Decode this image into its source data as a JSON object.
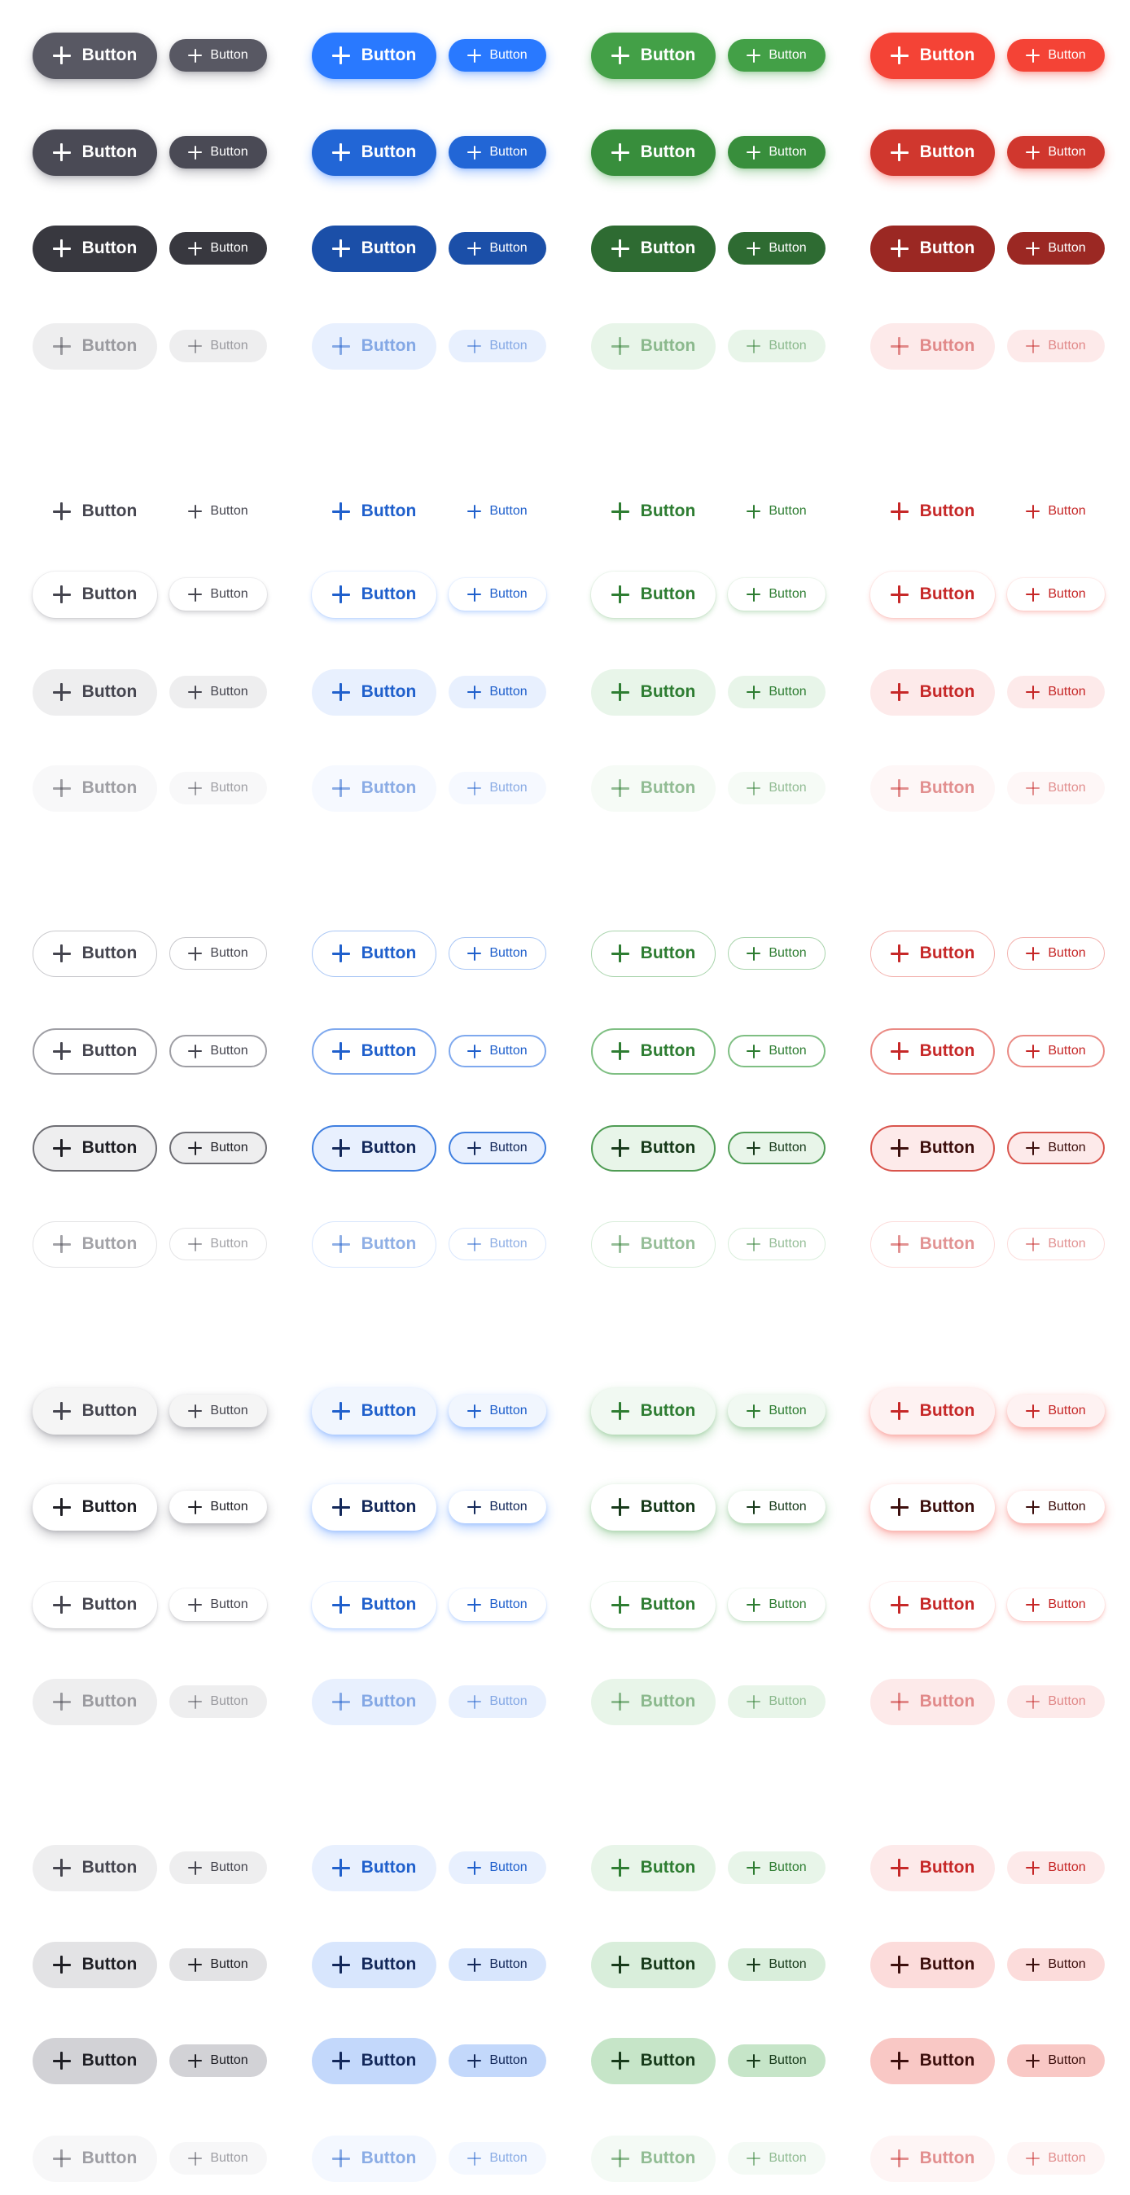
{
  "button_label": "Button",
  "icon": "plus-icon",
  "palettes": [
    {
      "name": "neutral",
      "base": "#585863",
      "hover": "#4a4a55",
      "active": "#38383f",
      "text": "#45454f",
      "strong": "#1e1e24",
      "tint": "#eeeeef",
      "tint2": "#e3e3e5",
      "tint3": "#d2d2d6",
      "border": "#c8c8cc",
      "border2": "#9e9ea4",
      "border3": "#6e6e74"
    },
    {
      "name": "blue",
      "base": "#2979ff",
      "hover": "#2266d6",
      "active": "#1b4fa8",
      "text": "#2060cc",
      "strong": "#13285a",
      "tint": "#e8f0fe",
      "tint2": "#d8e6fd",
      "tint3": "#c3d8fb",
      "border": "#a9c6f5",
      "border2": "#7fa9ee",
      "border3": "#3f7fe0"
    },
    {
      "name": "green",
      "base": "#43a047",
      "hover": "#388e3c",
      "active": "#2e6b32",
      "text": "#2e7d32",
      "strong": "#173a1a",
      "tint": "#e8f5e9",
      "tint2": "#d9eedb",
      "tint3": "#c6e5c8",
      "border": "#a9d4ac",
      "border2": "#7fbf83",
      "border3": "#4f9c54"
    },
    {
      "name": "red",
      "base": "#f44336",
      "hover": "#d0372e",
      "active": "#9b2823",
      "text": "#c62828",
      "strong": "#3d0f0d",
      "tint": "#fdeaea",
      "tint2": "#fcdcdb",
      "tint3": "#f9c8c5",
      "border": "#f3b2ae",
      "border2": "#ea8a84",
      "border3": "#d9544c"
    }
  ],
  "groups": [
    {
      "variant": "solid",
      "states": [
        "default",
        "hover",
        "active",
        "disabled"
      ]
    },
    {
      "variant": "text",
      "states": [
        "default",
        "hover",
        "active",
        "disabled"
      ]
    },
    {
      "variant": "outline",
      "states": [
        "default",
        "hover",
        "active",
        "disabled"
      ]
    },
    {
      "variant": "elevated",
      "states": [
        "default",
        "hover",
        "active",
        "disabled"
      ]
    },
    {
      "variant": "tonal",
      "states": [
        "default",
        "hover",
        "active",
        "disabled"
      ]
    }
  ]
}
